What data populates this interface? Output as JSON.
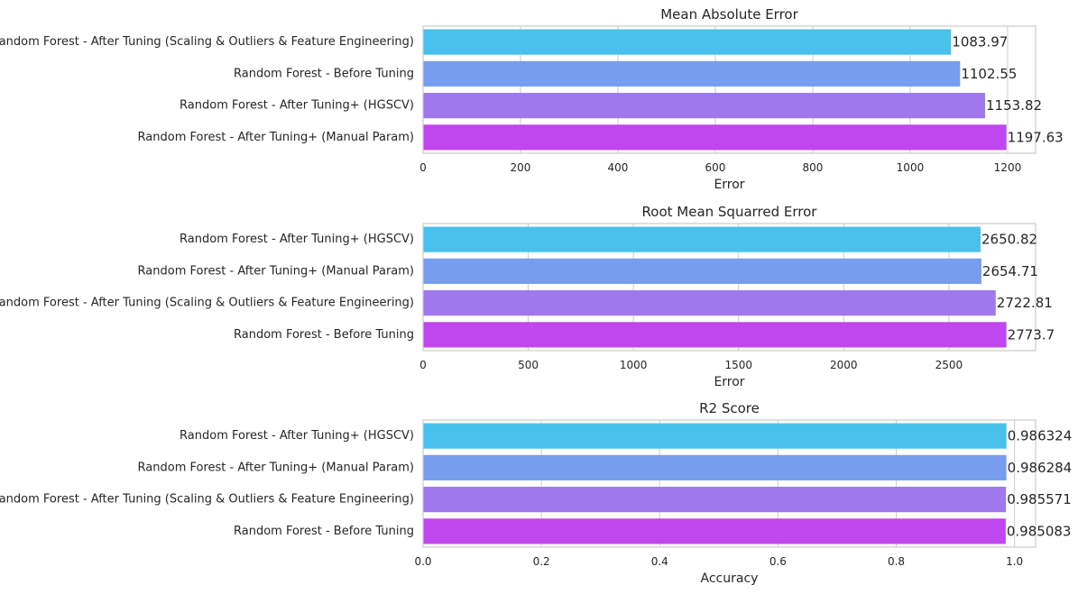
{
  "chart_data": [
    {
      "type": "bar",
      "orientation": "horizontal",
      "title": "Mean Absolute Error",
      "xlabel": "Error",
      "ylabel": "",
      "categories": [
        "Random Forest - After Tuning (Scaling & Outliers & Feature Engineering)",
        "Random Forest - Before Tuning",
        "Random Forest - After Tuning+ (HGSCV)",
        "Random Forest - After Tuning+ (Manual Param)"
      ],
      "values": [
        1083.97,
        1102.55,
        1153.82,
        1197.63
      ],
      "value_labels": [
        "1083.97",
        "1102.55",
        "1153.82",
        "1197.63"
      ],
      "xlim": [
        0,
        1257.5
      ],
      "xticks": [
        0,
        200,
        400,
        600,
        800,
        1000,
        1200
      ],
      "xtick_labels": [
        "0",
        "200",
        "400",
        "600",
        "800",
        "1000",
        "1200"
      ],
      "colors": [
        "#48c2ec",
        "#779def",
        "#9f78ed",
        "#c046ef"
      ],
      "grid": true
    },
    {
      "type": "bar",
      "orientation": "horizontal",
      "title": "Root Mean Squarred Error",
      "xlabel": "Error",
      "ylabel": "",
      "categories": [
        "Random Forest - After Tuning+ (HGSCV)",
        "Random Forest - After Tuning+ (Manual Param)",
        "Random Forest - After Tuning (Scaling & Outliers & Feature Engineering)",
        "Random Forest - Before Tuning"
      ],
      "values": [
        2650.82,
        2654.71,
        2722.81,
        2773.7
      ],
      "value_labels": [
        "2650.82",
        "2654.71",
        "2722.81",
        "2773.7"
      ],
      "xlim": [
        0,
        2912.4
      ],
      "xticks": [
        0,
        500,
        1000,
        1500,
        2000,
        2500
      ],
      "xtick_labels": [
        "0",
        "500",
        "1000",
        "1500",
        "2000",
        "2500"
      ],
      "colors": [
        "#48c2ec",
        "#779def",
        "#9f78ed",
        "#c046ef"
      ],
      "grid": true
    },
    {
      "type": "bar",
      "orientation": "horizontal",
      "title": "R2 Score",
      "xlabel": "Accuracy",
      "ylabel": "",
      "categories": [
        "Random Forest - After Tuning+ (HGSCV)",
        "Random Forest - After Tuning+ (Manual Param)",
        "Random Forest - After Tuning (Scaling & Outliers & Feature Engineering)",
        "Random Forest - Before Tuning"
      ],
      "values": [
        0.986324,
        0.986284,
        0.985571,
        0.985083
      ],
      "value_labels": [
        "0.986324",
        "0.986284",
        "0.985571",
        "0.985083"
      ],
      "xlim": [
        0,
        1.0356
      ],
      "xticks": [
        0.0,
        0.2,
        0.4,
        0.6,
        0.8,
        1.0
      ],
      "xtick_labels": [
        "0.0",
        "0.2",
        "0.4",
        "0.6",
        "0.8",
        "1.0"
      ],
      "colors": [
        "#48c2ec",
        "#779def",
        "#9f78ed",
        "#c046ef"
      ],
      "grid": true
    }
  ]
}
